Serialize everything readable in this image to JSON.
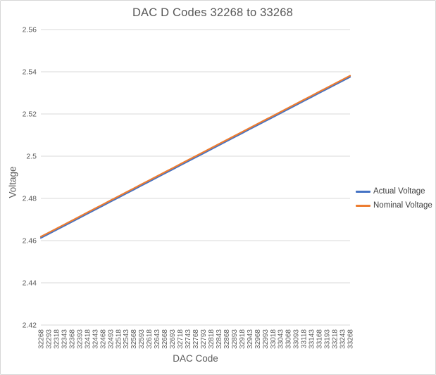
{
  "chart_data": {
    "type": "line",
    "title": "DAC D Codes 32268 to 33268",
    "xlabel": "DAC Code",
    "ylabel": "Voltage",
    "ylim": [
      2.42,
      2.56
    ],
    "y_ticks": [
      "2.56",
      "2.54",
      "2.52",
      "2.5",
      "2.48",
      "2.46",
      "2.44",
      "2.42"
    ],
    "grid": true,
    "legend_position": "right",
    "x_tick_rotation_deg": -90,
    "categories": [
      "32268",
      "32293",
      "32318",
      "32343",
      "32368",
      "32393",
      "32418",
      "32443",
      "32468",
      "32493",
      "32518",
      "32543",
      "32568",
      "32593",
      "32618",
      "32643",
      "32668",
      "32693",
      "32718",
      "32743",
      "32768",
      "32793",
      "32818",
      "32843",
      "32868",
      "32893",
      "32918",
      "32943",
      "32968",
      "32993",
      "33018",
      "33043",
      "33068",
      "33093",
      "33118",
      "33143",
      "33168",
      "33193",
      "33218",
      "33243",
      "33268"
    ],
    "series": [
      {
        "name": "Actual Voltage",
        "color": "#4472C4",
        "values": [
          2.46125,
          2.46316,
          2.46507,
          2.46697,
          2.46888,
          2.47079,
          2.4727,
          2.4746,
          2.47651,
          2.47842,
          2.48033,
          2.48223,
          2.48414,
          2.48605,
          2.48796,
          2.48986,
          2.49177,
          2.49368,
          2.49559,
          2.49749,
          2.4994,
          2.50131,
          2.50321,
          2.50512,
          2.50703,
          2.50894,
          2.51084,
          2.51275,
          2.51466,
          2.51657,
          2.51847,
          2.52038,
          2.52229,
          2.5242,
          2.5261,
          2.52801,
          2.52992,
          2.53183,
          2.53373,
          2.53564,
          2.53755
        ]
      },
      {
        "name": "Nominal Voltage",
        "color": "#ED7D31",
        "values": [
          2.46185,
          2.46376,
          2.46567,
          2.46757,
          2.46948,
          2.47139,
          2.4733,
          2.4752,
          2.47711,
          2.47902,
          2.48093,
          2.48283,
          2.48474,
          2.48665,
          2.48856,
          2.49046,
          2.49237,
          2.49428,
          2.49619,
          2.49809,
          2.5,
          2.50191,
          2.50381,
          2.50572,
          2.50763,
          2.50954,
          2.51144,
          2.51335,
          2.51526,
          2.51717,
          2.51907,
          2.52098,
          2.52289,
          2.5248,
          2.5267,
          2.52861,
          2.53052,
          2.53243,
          2.53433,
          2.53624,
          2.53815
        ]
      }
    ],
    "styles": {
      "gridline_color": "#D9D9D9",
      "tick_label_color": "#595959",
      "title_color": "#595959",
      "legend_text_color": "#404040",
      "plot_bg": "#FFFFFF"
    }
  }
}
